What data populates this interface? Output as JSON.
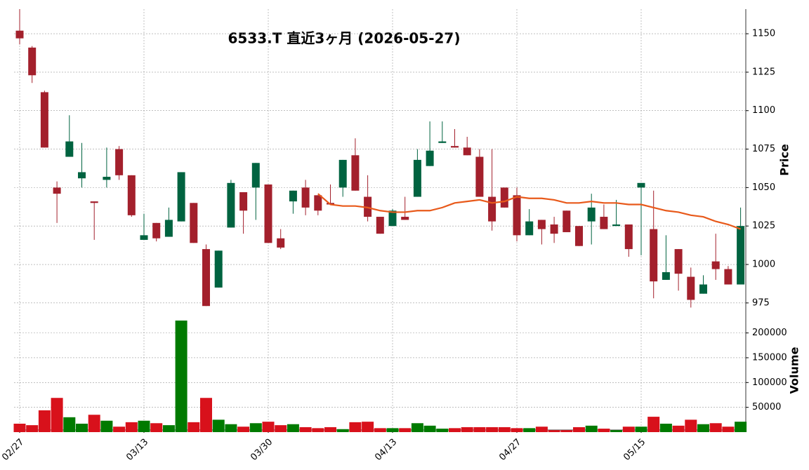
{
  "chart_data": {
    "type": "candlestick",
    "title": "6533.T  直近3ヶ月 (2026-05-27)",
    "categories": [
      "02/27",
      null,
      null,
      null,
      null,
      null,
      null,
      null,
      null,
      null,
      "03/13",
      null,
      null,
      null,
      null,
      null,
      null,
      null,
      null,
      null,
      "03/30",
      null,
      null,
      null,
      null,
      null,
      null,
      null,
      null,
      null,
      "04/13",
      null,
      null,
      null,
      null,
      null,
      null,
      null,
      null,
      null,
      "04/27",
      null,
      null,
      null,
      null,
      null,
      null,
      null,
      null,
      null,
      "05/15",
      null,
      null,
      null,
      null,
      null,
      null,
      null,
      null
    ],
    "open": [
      1152,
      1141,
      1112,
      1050,
      1070,
      1056,
      1041,
      1055,
      1075,
      1058,
      1016,
      1027,
      1018,
      1028,
      1040,
      1010,
      985,
      1024,
      1047,
      1050,
      1052,
      1017,
      1041,
      1050,
      1045,
      1040,
      1050,
      1071,
      1044,
      1031,
      1025,
      1031,
      1044,
      1064,
      1079,
      1077,
      1076,
      1070,
      1044,
      1050,
      1045,
      1019,
      1029,
      1026,
      1035,
      1025,
      1028,
      1031,
      1025,
      1026,
      1050,
      1023,
      990,
      1010,
      992,
      981,
      1002,
      997,
      987
    ],
    "high": [
      1166,
      1142,
      1113,
      1054,
      1097,
      1079,
      1041,
      1076,
      1077,
      1058,
      1033,
      1027,
      1037,
      1060,
      1040,
      1013,
      1009,
      1055,
      1047,
      1066,
      1052,
      1023,
      1048,
      1055,
      1045,
      1052,
      1068,
      1082,
      1058,
      1031,
      1036,
      1044,
      1075,
      1093,
      1093,
      1088,
      1083,
      1075,
      1075,
      1050,
      1050,
      1036,
      1029,
      1031,
      1035,
      1025,
      1046,
      1039,
      1042,
      1026,
      1053,
      1048,
      1019,
      1010,
      998,
      993,
      1020,
      999,
      1037
    ],
    "low": [
      1143,
      1118,
      1076,
      1027,
      1070,
      1050,
      1016,
      1050,
      1055,
      1031,
      1016,
      1015,
      1018,
      1028,
      1014,
      973,
      985,
      1024,
      1020,
      1029,
      1014,
      1010,
      1033,
      1032,
      1032,
      1039,
      1044,
      1048,
      1028,
      1020,
      1025,
      1029,
      1044,
      1064,
      1079,
      1076,
      1071,
      1044,
      1022,
      1037,
      1015,
      1019,
      1013,
      1014,
      1021,
      1012,
      1013,
      1023,
      1025,
      1005,
      1006,
      978,
      990,
      983,
      972,
      981,
      990,
      987,
      987
    ],
    "close": [
      1147,
      1123,
      1076,
      1046,
      1080,
      1060,
      1040,
      1057,
      1058,
      1032,
      1019,
      1017,
      1029,
      1060,
      1014,
      973,
      1009,
      1053,
      1035,
      1066,
      1014,
      1011,
      1048,
      1037,
      1035,
      1039,
      1068,
      1048,
      1031,
      1020,
      1035,
      1029,
      1068,
      1074,
      1080,
      1076,
      1071,
      1044,
      1028,
      1037,
      1019,
      1028,
      1023,
      1020,
      1021,
      1012,
      1037,
      1023,
      1026,
      1010,
      1053,
      989,
      995,
      994,
      977,
      987,
      997,
      987,
      1025
    ],
    "volume": [
      17000,
      14000,
      44000,
      69000,
      30000,
      17000,
      35000,
      23000,
      11000,
      20000,
      23000,
      18000,
      14000,
      225000,
      20000,
      69000,
      25000,
      16000,
      11000,
      18000,
      21000,
      14000,
      16000,
      10000,
      8000,
      10000,
      6000,
      20000,
      21000,
      8000,
      8000,
      8000,
      18000,
      13000,
      7000,
      8000,
      10000,
      10000,
      10000,
      10000,
      8000,
      8000,
      11000,
      4000,
      4000,
      10000,
      13000,
      7000,
      4000,
      11000,
      11000,
      31000,
      17000,
      13000,
      25000,
      16000,
      18000,
      11000,
      21000
    ],
    "moving_average": {
      "color": "#e8591a",
      "values": [
        null,
        null,
        null,
        null,
        null,
        null,
        null,
        null,
        null,
        null,
        null,
        null,
        null,
        null,
        null,
        null,
        null,
        null,
        null,
        null,
        null,
        null,
        null,
        null,
        1046,
        1039,
        1038,
        1038,
        1037,
        1035,
        1034,
        1034,
        1035,
        1035,
        1037,
        1040,
        1041,
        1042,
        1040,
        1041,
        1044,
        1043,
        1043,
        1042,
        1040,
        1040,
        1041,
        1040,
        1040,
        1039,
        1039,
        1037,
        1035,
        1034,
        1032,
        1031,
        1028,
        1026,
        1023
      ]
    },
    "up_color": "#006340",
    "down_color": "#a3202c",
    "volume_up_color": "#007a00",
    "volume_down_color": "#d8111b",
    "ylim": [
      969,
      1166
    ],
    "yticks": [
      975,
      1000,
      1025,
      1050,
      1075,
      1100,
      1125,
      1150
    ],
    "y_label": "Price",
    "volume_ylim": [
      0,
      232000
    ],
    "volume_yticks": [
      50000,
      100000,
      150000,
      200000
    ],
    "volume_label": "Volume",
    "grid": true
  }
}
